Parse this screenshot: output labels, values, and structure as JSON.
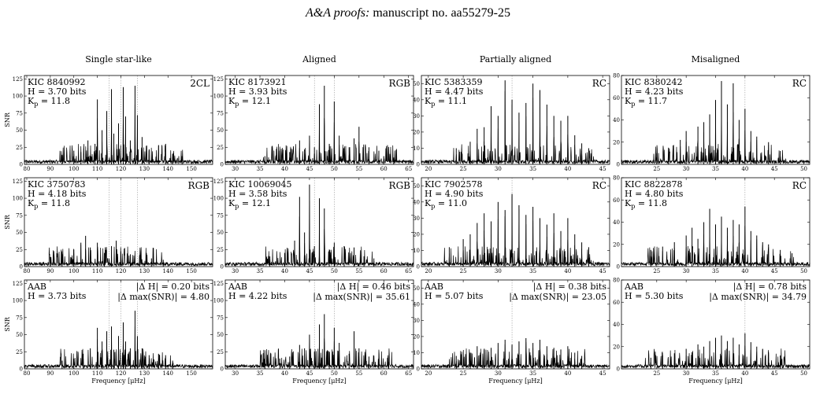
{
  "page_header": {
    "journal": "A&A proofs:",
    "manuscript": "manuscript no. aa55279-25"
  },
  "chart_data": {
    "type": "line",
    "ylabel": "SNR",
    "xlabel": "Frequency [μHz]",
    "column_titles": [
      "Single star-like",
      "Aligned",
      "Partially aligned",
      "Misaligned"
    ],
    "columns": [
      {
        "xlim": [
          79,
          159
        ],
        "xticks": [
          80,
          90,
          100,
          110,
          120,
          130,
          140,
          150
        ],
        "ylim": [
          0,
          130
        ],
        "yticks": [
          0,
          25,
          50,
          75,
          100,
          125
        ],
        "dotted_lines": [
          115,
          120,
          127
        ]
      },
      {
        "xlim": [
          28,
          66
        ],
        "xticks": [
          30,
          35,
          40,
          45,
          50,
          55,
          60,
          65
        ],
        "ylim": [
          0,
          130
        ],
        "yticks": [
          0,
          25,
          50,
          75,
          100,
          125
        ],
        "dotted_lines": [
          46,
          50
        ]
      },
      {
        "xlim": [
          19,
          46
        ],
        "xticks": [
          20,
          25,
          30,
          35,
          40,
          45
        ],
        "ylim": [
          0,
          55
        ],
        "yticks": [
          0,
          10,
          20,
          30,
          40,
          50
        ],
        "dotted_lines": [
          32
        ]
      },
      {
        "xlim": [
          19,
          51
        ],
        "xticks": [
          25,
          30,
          35,
          40,
          45,
          50
        ],
        "ylim": [
          0,
          80
        ],
        "yticks": [
          0,
          20,
          40,
          60,
          80
        ],
        "dotted_lines": [
          40
        ]
      }
    ],
    "panels": [
      {
        "row": 0,
        "col": 0,
        "id": "KIC 8840992",
        "entropy": "H = 3.70 bits",
        "kp": "11.8",
        "tag": "2CL",
        "peaks": [
          [
            95,
            14
          ],
          [
            100,
            20
          ],
          [
            103,
            18
          ],
          [
            106,
            35
          ],
          [
            109,
            30
          ],
          [
            110,
            95
          ],
          [
            112,
            50
          ],
          [
            114,
            78
          ],
          [
            116,
            110
          ],
          [
            117,
            45
          ],
          [
            119,
            60
          ],
          [
            121,
            113
          ],
          [
            122,
            70
          ],
          [
            124,
            35
          ],
          [
            126,
            115
          ],
          [
            127,
            72
          ],
          [
            129,
            40
          ],
          [
            132,
            22
          ],
          [
            136,
            28
          ],
          [
            139,
            30
          ],
          [
            142,
            15
          ],
          [
            146,
            12
          ]
        ]
      },
      {
        "row": 0,
        "col": 1,
        "id": "KIC 8173921",
        "entropy": "H = 3.93 bits",
        "kp": "12.1",
        "tag": "RGB",
        "peaks": [
          [
            36,
            12
          ],
          [
            39,
            20
          ],
          [
            41,
            18
          ],
          [
            43,
            35
          ],
          [
            44,
            22
          ],
          [
            45,
            42
          ],
          [
            46,
            25
          ],
          [
            47,
            88
          ],
          [
            48,
            115
          ],
          [
            49,
            30
          ],
          [
            50,
            92
          ],
          [
            51,
            42
          ],
          [
            53,
            25
          ],
          [
            54,
            38
          ],
          [
            55,
            55
          ],
          [
            57,
            25
          ],
          [
            59,
            20
          ],
          [
            60,
            12
          ],
          [
            62,
            10
          ]
        ]
      },
      {
        "row": 0,
        "col": 2,
        "id": "KIC 5383359",
        "entropy": "H = 4.47 bits",
        "kp": "11.1",
        "tag": "RC",
        "peaks": [
          [
            24,
            10
          ],
          [
            26,
            14
          ],
          [
            27,
            22
          ],
          [
            28,
            23
          ],
          [
            29,
            36
          ],
          [
            30,
            30
          ],
          [
            31,
            52
          ],
          [
            32,
            40
          ],
          [
            33,
            32
          ],
          [
            34,
            38
          ],
          [
            35,
            50
          ],
          [
            36,
            46
          ],
          [
            37,
            37
          ],
          [
            38,
            30
          ],
          [
            39,
            27
          ],
          [
            40,
            30
          ],
          [
            41,
            18
          ],
          [
            42,
            13
          ],
          [
            43,
            10
          ]
        ]
      },
      {
        "row": 0,
        "col": 3,
        "id": "KIC 8380242",
        "entropy": "H = 4.23 bits",
        "kp": "11.7",
        "tag": "RC",
        "peaks": [
          [
            25,
            10
          ],
          [
            27,
            15
          ],
          [
            29,
            22
          ],
          [
            30,
            30
          ],
          [
            32,
            34
          ],
          [
            33,
            38
          ],
          [
            34,
            45
          ],
          [
            35,
            58
          ],
          [
            36,
            75
          ],
          [
            37,
            54
          ],
          [
            38,
            73
          ],
          [
            39,
            40
          ],
          [
            40,
            50
          ],
          [
            41,
            30
          ],
          [
            42,
            25
          ],
          [
            44,
            20
          ],
          [
            46,
            12
          ]
        ]
      },
      {
        "row": 1,
        "col": 0,
        "id": "KIC 3750783",
        "entropy": "H = 4.18 bits",
        "kp": "11.8",
        "tag": "RGB",
        "peaks": [
          [
            90,
            14
          ],
          [
            95,
            18
          ],
          [
            100,
            25
          ],
          [
            103,
            35
          ],
          [
            105,
            45
          ],
          [
            107,
            28
          ],
          [
            110,
            35
          ],
          [
            113,
            20
          ],
          [
            116,
            30
          ],
          [
            118,
            38
          ],
          [
            120,
            22
          ],
          [
            124,
            18
          ],
          [
            128,
            15
          ],
          [
            133,
            12
          ],
          [
            138,
            10
          ]
        ]
      },
      {
        "row": 1,
        "col": 1,
        "id": "KIC 10069045",
        "entropy": "H = 3.58 bits",
        "kp": "12.1",
        "tag": "RGB",
        "peaks": [
          [
            37,
            15
          ],
          [
            40,
            20
          ],
          [
            42,
            38
          ],
          [
            43,
            102
          ],
          [
            44,
            50
          ],
          [
            45,
            120
          ],
          [
            46,
            30
          ],
          [
            47,
            100
          ],
          [
            48,
            85
          ],
          [
            49,
            25
          ],
          [
            50,
            35
          ],
          [
            52,
            30
          ],
          [
            54,
            28
          ],
          [
            56,
            15
          ],
          [
            58,
            12
          ]
        ]
      },
      {
        "row": 1,
        "col": 2,
        "id": "KIC 7902578",
        "entropy": "H = 4.90 bits",
        "kp": "11.0",
        "tag": "RC",
        "peaks": [
          [
            23,
            12
          ],
          [
            25,
            17
          ],
          [
            26,
            20
          ],
          [
            27,
            27
          ],
          [
            28,
            33
          ],
          [
            29,
            28
          ],
          [
            30,
            40
          ],
          [
            31,
            35
          ],
          [
            32,
            45
          ],
          [
            33,
            38
          ],
          [
            34,
            32
          ],
          [
            35,
            37
          ],
          [
            36,
            30
          ],
          [
            37,
            26
          ],
          [
            38,
            33
          ],
          [
            39,
            22
          ],
          [
            40,
            30
          ],
          [
            41,
            20
          ],
          [
            42,
            15
          ],
          [
            43,
            12
          ]
        ]
      },
      {
        "row": 1,
        "col": 3,
        "id": "KIC 8822878",
        "entropy": "H = 4.80 bits",
        "kp": "11.8",
        "tag": "RC",
        "peaks": [
          [
            24,
            15
          ],
          [
            26,
            18
          ],
          [
            28,
            22
          ],
          [
            30,
            28
          ],
          [
            31,
            35
          ],
          [
            32,
            25
          ],
          [
            33,
            40
          ],
          [
            34,
            52
          ],
          [
            35,
            38
          ],
          [
            36,
            45
          ],
          [
            37,
            35
          ],
          [
            38,
            42
          ],
          [
            39,
            38
          ],
          [
            40,
            54
          ],
          [
            41,
            32
          ],
          [
            42,
            28
          ],
          [
            43,
            22
          ],
          [
            44,
            20
          ],
          [
            46,
            15
          ],
          [
            48,
            12
          ]
        ]
      },
      {
        "row": 2,
        "col": 0,
        "id": "AAB",
        "entropy": "H = 3.73 bits",
        "delta_h": "|Δ H| = 0.20 bits",
        "delta_max": "|Δ max(SNR)| = 4.80",
        "peaks": [
          [
            95,
            12
          ],
          [
            100,
            15
          ],
          [
            104,
            22
          ],
          [
            107,
            30
          ],
          [
            110,
            60
          ],
          [
            112,
            40
          ],
          [
            114,
            55
          ],
          [
            116,
            62
          ],
          [
            117,
            28
          ],
          [
            119,
            48
          ],
          [
            121,
            68
          ],
          [
            122,
            40
          ],
          [
            124,
            30
          ],
          [
            126,
            85
          ],
          [
            127,
            48
          ],
          [
            129,
            30
          ],
          [
            132,
            20
          ],
          [
            136,
            22
          ],
          [
            139,
            20
          ],
          [
            142,
            12
          ]
        ]
      },
      {
        "row": 2,
        "col": 1,
        "id": "AAB",
        "entropy": "H = 4.22 bits",
        "delta_h": "|Δ H| = 0.46 bits",
        "delta_max": "|Δ max(SNR)| = 35.61",
        "peaks": [
          [
            36,
            10
          ],
          [
            39,
            15
          ],
          [
            41,
            18
          ],
          [
            43,
            35
          ],
          [
            44,
            30
          ],
          [
            45,
            50
          ],
          [
            46,
            25
          ],
          [
            47,
            65
          ],
          [
            48,
            80
          ],
          [
            49,
            25
          ],
          [
            50,
            60
          ],
          [
            51,
            38
          ],
          [
            53,
            22
          ],
          [
            54,
            55
          ],
          [
            55,
            30
          ],
          [
            57,
            18
          ],
          [
            59,
            15
          ],
          [
            61,
            10
          ]
        ]
      },
      {
        "row": 2,
        "col": 2,
        "id": "AAB",
        "entropy": "H = 5.07 bits",
        "delta_h": "|Δ H| = 0.38 bits",
        "delta_max": "|Δ max(SNR)| = 23.05",
        "peaks": [
          [
            24,
            8
          ],
          [
            26,
            10
          ],
          [
            27,
            14
          ],
          [
            28,
            12
          ],
          [
            29,
            13
          ],
          [
            30,
            16
          ],
          [
            31,
            18
          ],
          [
            32,
            15
          ],
          [
            33,
            17
          ],
          [
            34,
            19
          ],
          [
            35,
            16
          ],
          [
            36,
            18
          ],
          [
            37,
            14
          ],
          [
            38,
            13
          ],
          [
            39,
            12
          ],
          [
            40,
            14
          ],
          [
            41,
            10
          ],
          [
            42,
            8
          ]
        ]
      },
      {
        "row": 2,
        "col": 3,
        "id": "AAB",
        "entropy": "H = 5.30 bits",
        "delta_h": "|Δ H| = 0.78 bits",
        "delta_max": "|Δ max(SNR)| = 34.79",
        "peaks": [
          [
            24,
            10
          ],
          [
            26,
            12
          ],
          [
            28,
            14
          ],
          [
            30,
            18
          ],
          [
            31,
            15
          ],
          [
            32,
            22
          ],
          [
            33,
            20
          ],
          [
            34,
            25
          ],
          [
            35,
            28
          ],
          [
            36,
            30
          ],
          [
            37,
            25
          ],
          [
            38,
            28
          ],
          [
            39,
            22
          ],
          [
            40,
            32
          ],
          [
            41,
            24
          ],
          [
            42,
            20
          ],
          [
            43,
            18
          ],
          [
            44,
            15
          ],
          [
            46,
            12
          ]
        ]
      }
    ]
  }
}
